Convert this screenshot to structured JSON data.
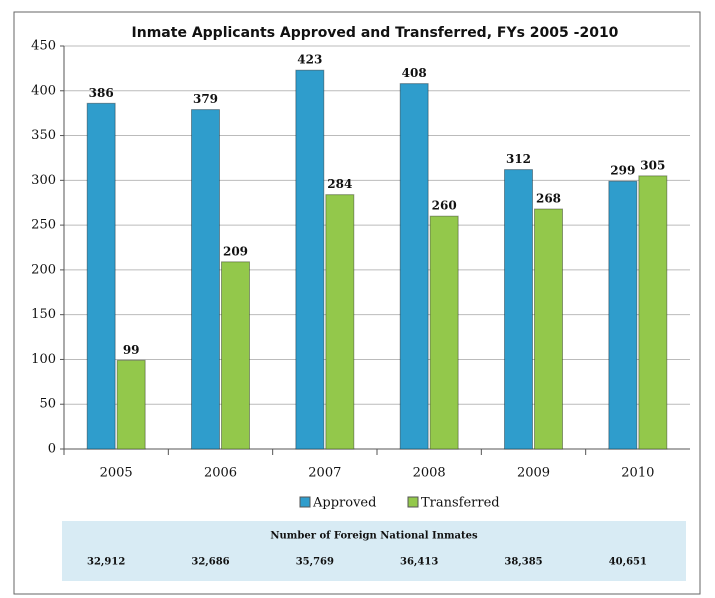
{
  "chart_data": {
    "type": "bar",
    "title": "Inmate Applicants Approved and Transferred, FYs 2005 -2010",
    "categories": [
      "2005",
      "2006",
      "2007",
      "2008",
      "2009",
      "2010"
    ],
    "series": [
      {
        "name": "Approved",
        "color": "#2f9dcc",
        "values": [
          386,
          379,
          423,
          408,
          312,
          299
        ]
      },
      {
        "name": "Transferred",
        "color": "#93c84b",
        "values": [
          99,
          209,
          284,
          260,
          268,
          305
        ]
      }
    ],
    "ylim": [
      0,
      450
    ],
    "yticks": [
      0,
      50,
      100,
      150,
      200,
      250,
      300,
      350,
      400,
      450
    ],
    "grid": true,
    "legend": "bottom"
  },
  "table": {
    "title": "Number of Foreign National Inmates",
    "values": [
      "32,912",
      "32,686",
      "35,769",
      "36,413",
      "38,385",
      "40,651"
    ]
  }
}
